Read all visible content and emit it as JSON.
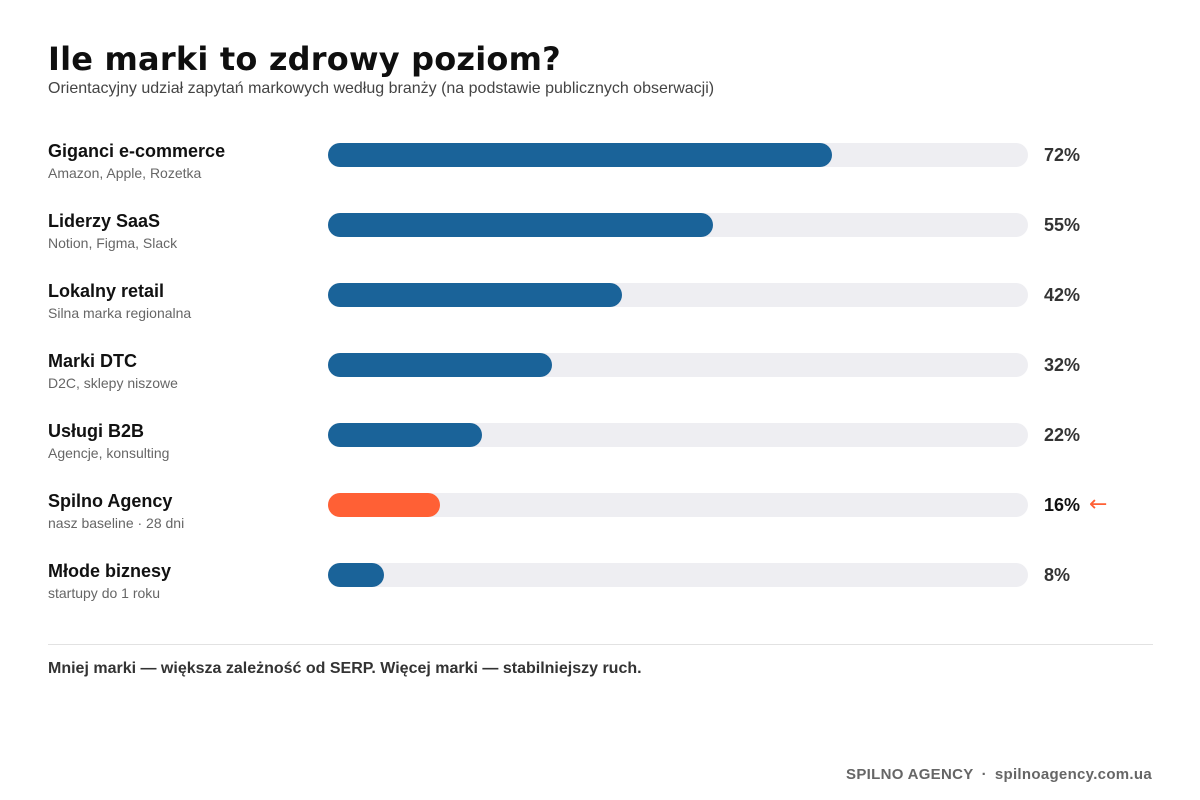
{
  "header": {
    "title": "Ile marki to zdrowy poziom?",
    "subtitle": "Orientacyjny udział zapytań markowych według branży (na podstawie publicznych obserwacji)"
  },
  "chart_data": {
    "type": "bar",
    "orientation": "horizontal",
    "title": "Ile marki to zdrowy poziom?",
    "subtitle": "Orientacyjny udział zapytań markowych według branży (na podstawie publicznych obserwacji)",
    "xlim": [
      0,
      100
    ],
    "grid": false,
    "unit": "%",
    "categories": [
      "Giganci e-commerce",
      "Liderzy SaaS",
      "Lokalny retail",
      "Marki DTC",
      "Usługi B2B",
      "Spilno Agency",
      "Młode biznesy"
    ],
    "values": [
      72,
      55,
      42,
      32,
      22,
      16,
      8
    ],
    "rows": [
      {
        "label": "Giganci e-commerce",
        "sublabel": "Amazon, Apple, Rozetka",
        "value": 72,
        "value_label": "72%",
        "highlight": false
      },
      {
        "label": "Liderzy SaaS",
        "sublabel": "Notion, Figma, Slack",
        "value": 55,
        "value_label": "55%",
        "highlight": false
      },
      {
        "label": "Lokalny retail",
        "sublabel": "Silna marka regionalna",
        "value": 42,
        "value_label": "42%",
        "highlight": false
      },
      {
        "label": "Marki DTC",
        "sublabel": "D2C, sklepy niszowe",
        "value": 32,
        "value_label": "32%",
        "highlight": false
      },
      {
        "label": "Usługi B2B",
        "sublabel": "Agencje, konsulting",
        "value": 22,
        "value_label": "22%",
        "highlight": false
      },
      {
        "label": "Spilno Agency",
        "sublabel": "nasz baseline · 28 dni",
        "value": 16,
        "value_label": "16%",
        "highlight": true,
        "marker": "←"
      },
      {
        "label": "Młode biznesy",
        "sublabel": "startupy do 1 roku",
        "value": 8,
        "value_label": "8%",
        "highlight": false
      }
    ],
    "colors": {
      "bar": "#1a6399",
      "highlight": "#ff6035",
      "track": "#eeeef2"
    }
  },
  "note": "Mniej marki — większa zależność od SERP. Więcej marki — stabilniejszy ruch.",
  "footer": {
    "brand": "SPILNO AGENCY",
    "separator": "·",
    "site": "spilnoagency.com.ua"
  }
}
